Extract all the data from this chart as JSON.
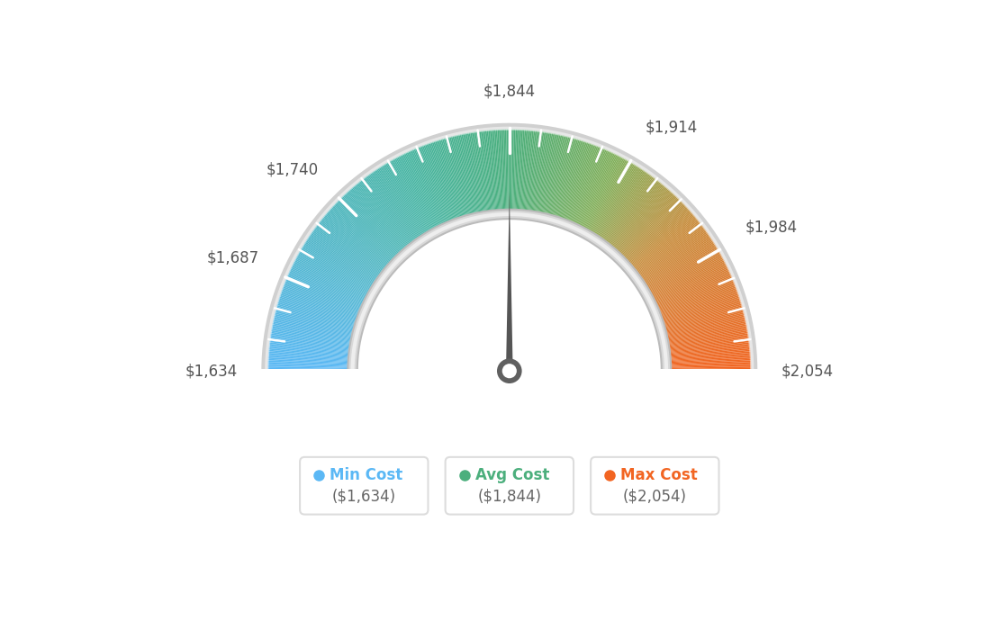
{
  "min_val": 1634,
  "avg_val": 1844,
  "max_val": 2054,
  "tick_labels": [
    "$1,634",
    "$1,687",
    "$1,740",
    "$1,844",
    "$1,914",
    "$1,984",
    "$2,054"
  ],
  "tick_values": [
    1634,
    1687,
    1740,
    1844,
    1914,
    1984,
    2054
  ],
  "legend_labels": [
    "Min Cost",
    "Avg Cost",
    "Max Cost"
  ],
  "legend_values": [
    "($1,634)",
    "($1,844)",
    "($2,054)"
  ],
  "legend_colors": [
    "#5bb8f5",
    "#4caf7d",
    "#f26522"
  ],
  "background_color": "#ffffff",
  "needle_value": 1844,
  "color_stops": [
    [
      0.0,
      [
        91,
        184,
        245
      ]
    ],
    [
      0.35,
      [
        72,
        181,
        163
      ]
    ],
    [
      0.5,
      [
        76,
        175,
        125
      ]
    ],
    [
      0.65,
      [
        130,
        175,
        90
      ]
    ],
    [
      0.78,
      [
        200,
        140,
        60
      ]
    ],
    [
      1.0,
      [
        242,
        101,
        34
      ]
    ]
  ]
}
